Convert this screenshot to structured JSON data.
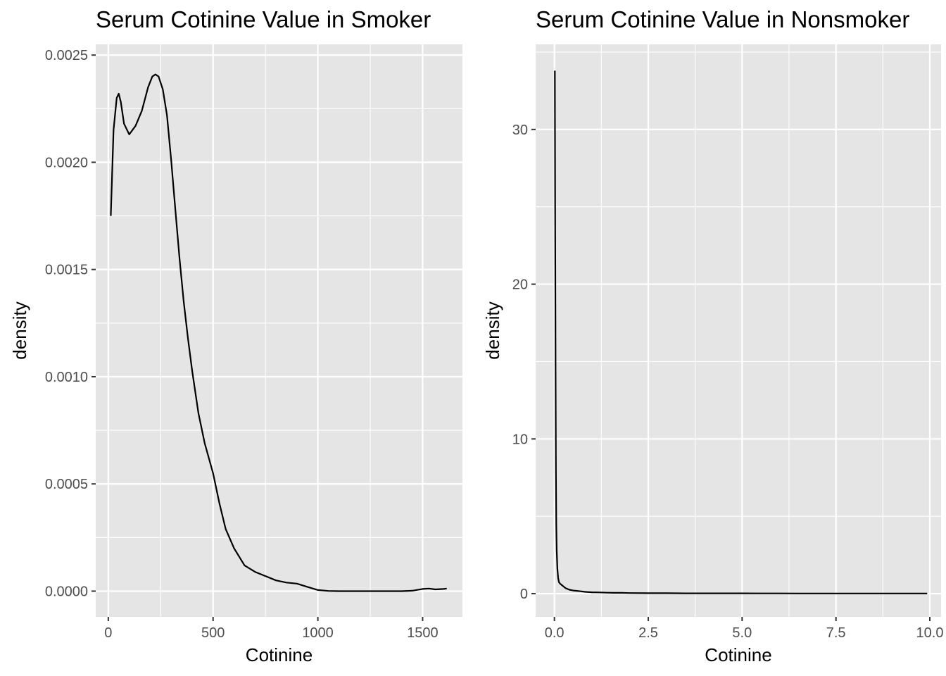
{
  "chart_data": [
    {
      "type": "line",
      "title": "Serum Cotinine Value in Smoker",
      "xlabel": "Cotinine",
      "ylabel": "density",
      "xlim": [
        -60,
        1690
      ],
      "ylim": [
        -0.00012,
        0.00255
      ],
      "x_ticks": [
        0,
        500,
        1000,
        1500
      ],
      "x_tick_labels": [
        "0",
        "500",
        "1000",
        "1500"
      ],
      "y_ticks": [
        0,
        0.0005,
        0.001,
        0.0015,
        0.002,
        0.0025
      ],
      "y_tick_labels": [
        "0.0000",
        "0.0005",
        "0.0010",
        "0.0015",
        "0.0020",
        "0.0025"
      ],
      "grid": true,
      "series": [
        {
          "x": [
            12,
            25,
            40,
            50,
            60,
            75,
            100,
            130,
            160,
            190,
            210,
            225,
            240,
            260,
            280,
            300,
            320,
            340,
            360,
            380,
            400,
            430,
            460,
            500,
            530,
            560,
            600,
            650,
            700,
            750,
            800,
            850,
            900,
            950,
            1000,
            1050,
            1100,
            1200,
            1300,
            1400,
            1450,
            1500,
            1530,
            1560,
            1600,
            1615
          ],
          "y": [
            0.00175,
            0.00215,
            0.0023,
            0.00232,
            0.00228,
            0.00218,
            0.00213,
            0.00217,
            0.00224,
            0.00235,
            0.0024,
            0.00241,
            0.0024,
            0.00234,
            0.00222,
            0.00201,
            0.00178,
            0.00155,
            0.00135,
            0.00118,
            0.00103,
            0.00083,
            0.00069,
            0.00055,
            0.00041,
            0.00029,
            0.0002,
            0.00012,
            9e-05,
            7e-05,
            5e-05,
            4e-05,
            3.5e-05,
            2e-05,
            5e-06,
            1e-06,
            0.0,
            0.0,
            0.0,
            0.0,
            2e-06,
            1e-05,
            1.2e-05,
            8e-06,
            1e-05,
            1.2e-05
          ]
        }
      ]
    },
    {
      "type": "line",
      "title": "Serum Cotinine Value in Nonsmoker",
      "xlabel": "Cotinine",
      "ylabel": "density",
      "xlim": [
        -0.5,
        10.3
      ],
      "ylim": [
        -1.5,
        35.5
      ],
      "x_ticks": [
        0,
        2.5,
        5,
        7.5,
        10
      ],
      "x_tick_labels": [
        "0.0",
        "2.5",
        "5.0",
        "7.5",
        "10.0"
      ],
      "y_ticks": [
        0,
        10,
        20,
        30
      ],
      "y_tick_labels": [
        "0",
        "10",
        "20",
        "30"
      ],
      "grid": true,
      "series": [
        {
          "x": [
            0.011,
            0.02,
            0.03,
            0.04,
            0.05,
            0.06,
            0.08,
            0.1,
            0.12,
            0.15,
            0.2,
            0.25,
            0.3,
            0.35,
            0.4,
            0.5,
            0.6,
            0.7,
            0.8,
            0.9,
            1.0,
            1.2,
            1.4,
            1.6,
            1.8,
            2.0,
            2.5,
            3.0,
            3.5,
            4.0,
            4.5,
            5.0,
            5.5,
            6.0,
            6.5,
            7.0,
            7.5,
            8.0,
            8.5,
            9.0,
            9.5,
            9.93
          ],
          "y": [
            33.8,
            25.0,
            15.0,
            8.0,
            4.5,
            2.8,
            1.6,
            1.0,
            0.75,
            0.65,
            0.55,
            0.45,
            0.35,
            0.3,
            0.25,
            0.2,
            0.18,
            0.15,
            0.12,
            0.1,
            0.09,
            0.08,
            0.06,
            0.05,
            0.05,
            0.04,
            0.03,
            0.03,
            0.02,
            0.02,
            0.02,
            0.02,
            0.015,
            0.015,
            0.01,
            0.01,
            0.01,
            0.01,
            0.01,
            0.01,
            0.01,
            0.01
          ]
        }
      ]
    }
  ]
}
